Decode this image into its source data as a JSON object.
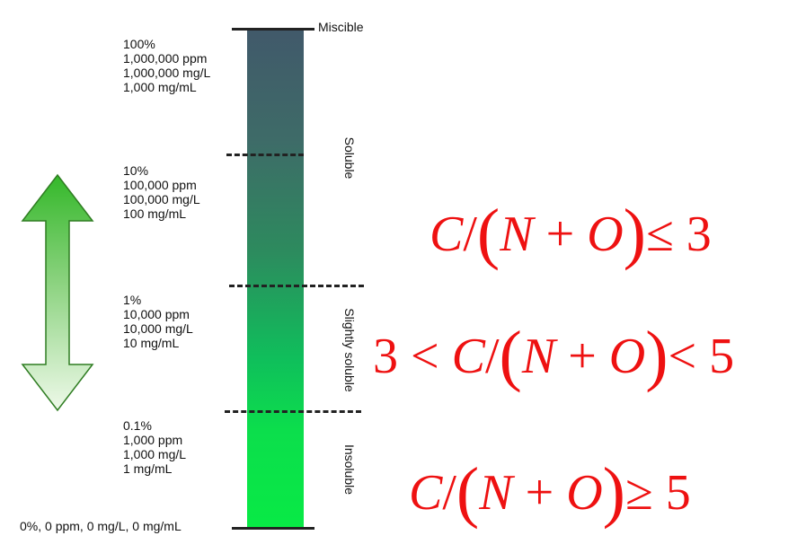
{
  "scale": {
    "top_label": "Miscible",
    "zones": [
      {
        "label": "Soluble"
      },
      {
        "label": "Slightly soluble"
      },
      {
        "label": "Insoluble"
      }
    ],
    "levels": [
      {
        "lines": [
          "100%",
          "1,000,000 ppm",
          "1,000,000 mg/L",
          "1,000 mg/mL"
        ]
      },
      {
        "lines": [
          "10%",
          "100,000 ppm",
          "100,000 mg/L",
          "100 mg/mL"
        ]
      },
      {
        "lines": [
          "1%",
          "10,000 ppm",
          "10,000 mg/L",
          "10 mg/mL"
        ]
      },
      {
        "lines": [
          "0.1%",
          "1,000 ppm",
          "1,000 mg/L",
          "1 mg/mL"
        ]
      }
    ],
    "bottom_label": "0%, 0 ppm, 0 mg/L, 0 mg/mL"
  },
  "formulas": [
    {
      "prefix": "",
      "vars": [
        "C",
        "N",
        "O"
      ],
      "op": "+",
      "relation": "≤",
      "value": "3"
    },
    {
      "prefix": "3 <",
      "vars": [
        "C",
        "N",
        "O"
      ],
      "op": "+",
      "relation": "<",
      "value": "5"
    },
    {
      "prefix": "",
      "vars": [
        "C",
        "N",
        "O"
      ],
      "op": "+",
      "relation": "≥",
      "value": "5"
    }
  ],
  "colors": {
    "bar_top": "#41596a",
    "bar_bottom": "#08ea45",
    "arrow_top": "#3dbb2f",
    "arrow_bottom": "#e6f7df",
    "formula": "#ee1111"
  },
  "icons": {
    "arrow": "double-headed-vertical-arrow"
  }
}
